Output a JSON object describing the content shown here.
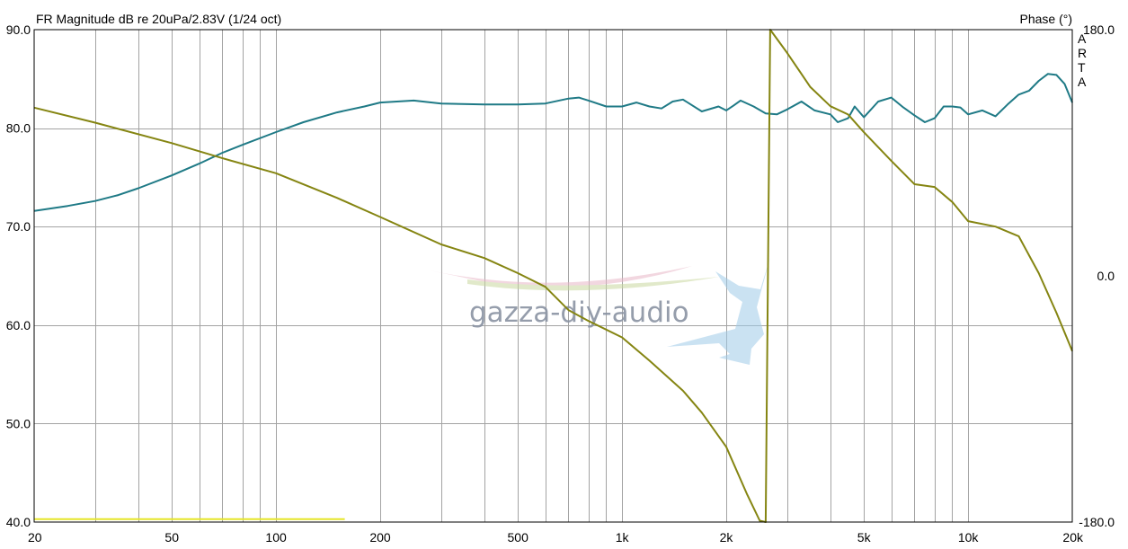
{
  "chart_data": {
    "type": "line",
    "title": "FR Magnitude dB re 20uPa/2.83V (1/24 oct)",
    "right_axis_title": "Phase (°)",
    "brand": "ARTA",
    "watermark": "gazza-diy-audio",
    "x_scale": "log",
    "xlim": [
      20,
      20000
    ],
    "x_ticks": [
      {
        "value": 20,
        "label": "20"
      },
      {
        "value": 50,
        "label": "50"
      },
      {
        "value": 100,
        "label": "100"
      },
      {
        "value": 200,
        "label": "200"
      },
      {
        "value": 500,
        "label": "500"
      },
      {
        "value": 1000,
        "label": "1k"
      },
      {
        "value": 2000,
        "label": "2k"
      },
      {
        "value": 5000,
        "label": "5k"
      },
      {
        "value": 10000,
        "label": "10k"
      },
      {
        "value": 20000,
        "label": "20k"
      }
    ],
    "ylim": [
      40,
      90
    ],
    "y_ticks": [
      {
        "value": 90,
        "label": "90.0"
      },
      {
        "value": 80,
        "label": "80.0"
      },
      {
        "value": 70,
        "label": "70.0"
      },
      {
        "value": 60,
        "label": "60.0"
      },
      {
        "value": 50,
        "label": "50.0"
      },
      {
        "value": 40,
        "label": "40.0"
      }
    ],
    "y2lim": [
      -180,
      180
    ],
    "y2_ticks": [
      {
        "value": 180,
        "label": "180.0"
      },
      {
        "value": 0,
        "label": "0.0"
      },
      {
        "value": -180,
        "label": "-180.0"
      }
    ],
    "grid": true,
    "colors": {
      "magnitude": "#1f7a86",
      "phase": "#858512",
      "marker": "#e6e62a",
      "grid": "#a3a3a3",
      "axis": "#000000"
    },
    "series": [
      {
        "axis": "left",
        "points": [
          [
            20,
            71.6
          ],
          [
            25,
            72.1
          ],
          [
            30,
            72.6
          ],
          [
            35,
            73.2
          ],
          [
            40,
            73.9
          ],
          [
            50,
            75.2
          ],
          [
            60,
            76.4
          ],
          [
            70,
            77.5
          ],
          [
            80,
            78.3
          ],
          [
            100,
            79.6
          ],
          [
            120,
            80.6
          ],
          [
            150,
            81.6
          ],
          [
            180,
            82.2
          ],
          [
            200,
            82.6
          ],
          [
            250,
            82.8
          ],
          [
            300,
            82.5
          ],
          [
            400,
            82.4
          ],
          [
            500,
            82.4
          ],
          [
            600,
            82.5
          ],
          [
            700,
            83.0
          ],
          [
            750,
            83.1
          ],
          [
            800,
            82.8
          ],
          [
            900,
            82.2
          ],
          [
            1000,
            82.2
          ],
          [
            1100,
            82.6
          ],
          [
            1200,
            82.2
          ],
          [
            1300,
            82.0
          ],
          [
            1400,
            82.7
          ],
          [
            1500,
            82.9
          ],
          [
            1700,
            81.7
          ],
          [
            1900,
            82.2
          ],
          [
            2000,
            81.8
          ],
          [
            2100,
            82.3
          ],
          [
            2200,
            82.8
          ],
          [
            2400,
            82.2
          ],
          [
            2600,
            81.5
          ],
          [
            2800,
            81.4
          ],
          [
            3000,
            81.9
          ],
          [
            3300,
            82.7
          ],
          [
            3600,
            81.8
          ],
          [
            4000,
            81.4
          ],
          [
            4200,
            80.6
          ],
          [
            4500,
            81.0
          ],
          [
            4700,
            82.2
          ],
          [
            5000,
            81.1
          ],
          [
            5500,
            82.7
          ],
          [
            6000,
            83.1
          ],
          [
            6500,
            82.1
          ],
          [
            7000,
            81.3
          ],
          [
            7500,
            80.6
          ],
          [
            8000,
            81.0
          ],
          [
            8500,
            82.2
          ],
          [
            9000,
            82.2
          ],
          [
            9500,
            82.1
          ],
          [
            10000,
            81.4
          ],
          [
            11000,
            81.8
          ],
          [
            12000,
            81.2
          ],
          [
            13000,
            82.4
          ],
          [
            14000,
            83.4
          ],
          [
            15000,
            83.8
          ],
          [
            16000,
            84.8
          ],
          [
            17000,
            85.5
          ],
          [
            18000,
            85.4
          ],
          [
            19000,
            84.5
          ],
          [
            20000,
            82.6
          ]
        ]
      },
      {
        "axis": "right",
        "points": [
          [
            20,
            123
          ],
          [
            30,
            112
          ],
          [
            50,
            97
          ],
          [
            70,
            86
          ],
          [
            100,
            75
          ],
          [
            150,
            57
          ],
          [
            200,
            43
          ],
          [
            300,
            23
          ],
          [
            400,
            13
          ],
          [
            500,
            2
          ],
          [
            600,
            -8
          ],
          [
            700,
            -25
          ],
          [
            800,
            -33
          ],
          [
            1000,
            -45
          ],
          [
            1200,
            -62
          ],
          [
            1500,
            -84
          ],
          [
            1700,
            -100
          ],
          [
            2000,
            -125
          ],
          [
            2300,
            -160
          ],
          [
            2500,
            -179
          ],
          [
            2600,
            -180
          ],
          [
            2640,
            0
          ],
          [
            2680,
            180
          ],
          [
            3000,
            163
          ],
          [
            3500,
            138
          ],
          [
            4000,
            124
          ],
          [
            4500,
            118
          ],
          [
            5000,
            105
          ],
          [
            6000,
            84
          ],
          [
            7000,
            67
          ],
          [
            8000,
            65
          ],
          [
            9000,
            54
          ],
          [
            10000,
            40
          ],
          [
            12000,
            36
          ],
          [
            14000,
            29
          ],
          [
            16000,
            2
          ],
          [
            18000,
            -27
          ],
          [
            20000,
            -55
          ]
        ]
      },
      {
        "axis": "left",
        "style": "marker",
        "points": [
          [
            20,
            40.3
          ],
          [
            158,
            40.3
          ]
        ]
      }
    ]
  }
}
